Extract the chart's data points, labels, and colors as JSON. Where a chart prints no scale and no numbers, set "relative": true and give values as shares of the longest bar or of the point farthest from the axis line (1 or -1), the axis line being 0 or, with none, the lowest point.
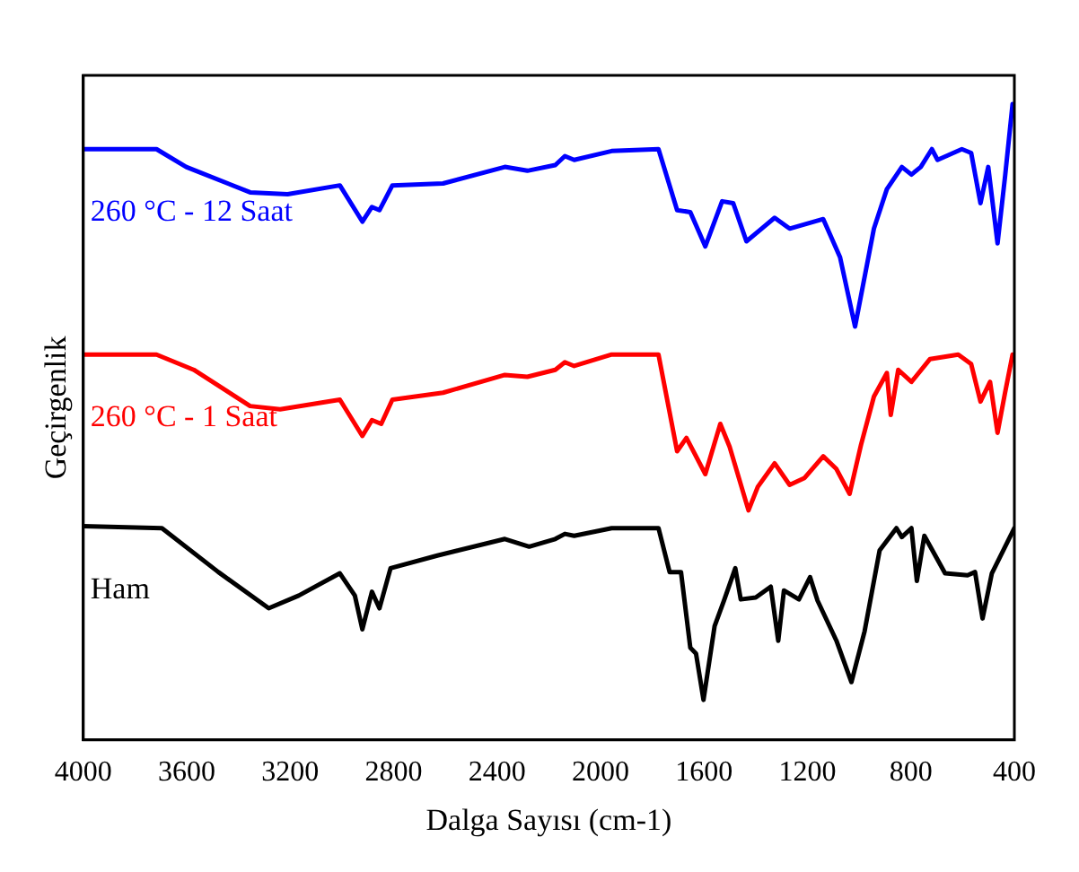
{
  "chart_data": {
    "type": "line",
    "xlabel": "Dalga Sayısı (cm-1)",
    "ylabel": "Geçirgenlik",
    "relative": true,
    "legend": false,
    "grid": false,
    "marker": "none",
    "line_style": "solid",
    "xlim": [
      4000,
      400
    ],
    "xticks": [
      4000,
      3600,
      3200,
      2800,
      2400,
      2000,
      1600,
      1200,
      800,
      400
    ],
    "series": [
      {
        "name": "260 °C - 12 Saat",
        "color": "#0000ff",
        "x": [
          4000,
          3717,
          3602,
          3355,
          3210,
          3008,
          2921,
          2884,
          2855,
          2805,
          2609,
          2370,
          2283,
          2175,
          2138,
          2102,
          1957,
          1776,
          1704,
          1653,
          1595,
          1530,
          1487,
          1436,
          1327,
          1269,
          1139,
          1074,
          1016,
          943,
          893,
          835,
          798,
          762,
          719,
          697,
          603,
          567,
          531,
          501,
          465,
          436,
          407
        ],
        "values": [
          0.929,
          0.929,
          0.901,
          0.861,
          0.858,
          0.872,
          0.815,
          0.838,
          0.833,
          0.872,
          0.875,
          0.901,
          0.895,
          0.904,
          0.918,
          0.912,
          0.926,
          0.929,
          0.833,
          0.83,
          0.776,
          0.847,
          0.844,
          0.784,
          0.821,
          0.804,
          0.819,
          0.759,
          0.65,
          0.804,
          0.866,
          0.901,
          0.889,
          0.901,
          0.929,
          0.912,
          0.929,
          0.923,
          0.844,
          0.901,
          0.781,
          0.886,
          1
        ]
      },
      {
        "name": "260 °C - 1 Saat",
        "color": "#ff0000",
        "x": [
          4000,
          3717,
          3573,
          3355,
          3239,
          3008,
          2921,
          2884,
          2848,
          2805,
          2609,
          2370,
          2283,
          2175,
          2138,
          2102,
          1957,
          1776,
          1704,
          1668,
          1595,
          1537,
          1501,
          1428,
          1392,
          1327,
          1269,
          1211,
          1139,
          1088,
          1037,
          993,
          943,
          893,
          878,
          849,
          798,
          726,
          617,
          567,
          531,
          494,
          465,
          436,
          407
        ],
        "values": [
          0.606,
          0.606,
          0.582,
          0.525,
          0.52,
          0.535,
          0.478,
          0.503,
          0.497,
          0.535,
          0.546,
          0.574,
          0.571,
          0.582,
          0.594,
          0.588,
          0.606,
          0.606,
          0.454,
          0.475,
          0.418,
          0.497,
          0.461,
          0.361,
          0.398,
          0.435,
          0.401,
          0.412,
          0.446,
          0.426,
          0.387,
          0.464,
          0.54,
          0.577,
          0.511,
          0.582,
          0.563,
          0.599,
          0.606,
          0.591,
          0.532,
          0.563,
          0.483,
          0.546,
          0.606
        ]
      },
      {
        "name": "Ham",
        "color": "#000000",
        "x": [
          4000,
          3696,
          3478,
          3283,
          3167,
          3008,
          2950,
          2921,
          2884,
          2855,
          2812,
          2631,
          2370,
          2276,
          2175,
          2138,
          2102,
          1957,
          1776,
          1733,
          1689,
          1653,
          1631,
          1602,
          1559,
          1523,
          1479,
          1458,
          1400,
          1342,
          1313,
          1291,
          1233,
          1190,
          1161,
          1088,
          1030,
          979,
          921,
          856,
          835,
          798,
          777,
          748,
          668,
          581,
          552,
          523,
          487,
          400
        ],
        "values": [
          0.336,
          0.333,
          0.264,
          0.207,
          0.227,
          0.262,
          0.227,
          0.174,
          0.233,
          0.207,
          0.27,
          0.29,
          0.316,
          0.304,
          0.316,
          0.324,
          0.321,
          0.333,
          0.333,
          0.264,
          0.264,
          0.145,
          0.136,
          0.063,
          0.179,
          0.219,
          0.27,
          0.221,
          0.224,
          0.241,
          0.156,
          0.235,
          0.221,
          0.256,
          0.219,
          0.156,
          0.091,
          0.171,
          0.298,
          0.333,
          0.319,
          0.333,
          0.25,
          0.321,
          0.262,
          0.259,
          0.264,
          0.191,
          0.262,
          0.333
        ]
      }
    ]
  }
}
